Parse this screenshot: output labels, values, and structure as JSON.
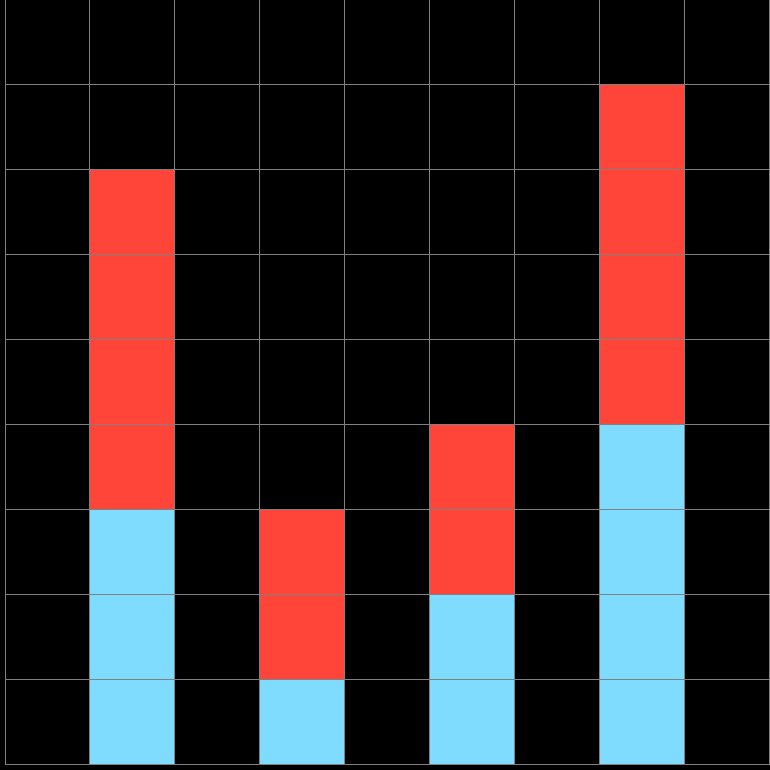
{
  "board": {
    "rows": 9,
    "cols": 9,
    "colors": {
      "empty": "#000000",
      "red": "#ff443a",
      "blue": "#80dcff",
      "grid_line": "#808080"
    },
    "grid": [
      [
        ".",
        ".",
        ".",
        ".",
        ".",
        ".",
        ".",
        ".",
        "."
      ],
      [
        ".",
        ".",
        ".",
        ".",
        ".",
        ".",
        ".",
        "R",
        "."
      ],
      [
        ".",
        "R",
        ".",
        ".",
        ".",
        ".",
        ".",
        "R",
        "."
      ],
      [
        ".",
        "R",
        ".",
        ".",
        ".",
        ".",
        ".",
        "R",
        "."
      ],
      [
        ".",
        "R",
        ".",
        ".",
        ".",
        ".",
        ".",
        "R",
        "."
      ],
      [
        ".",
        "R",
        ".",
        ".",
        ".",
        "R",
        ".",
        "B",
        "."
      ],
      [
        ".",
        "B",
        ".",
        "R",
        ".",
        "R",
        ".",
        "B",
        "."
      ],
      [
        ".",
        "B",
        ".",
        "R",
        ".",
        "B",
        ".",
        "B",
        "."
      ],
      [
        ".",
        "B",
        ".",
        "B",
        ".",
        "B",
        ".",
        "B",
        "."
      ]
    ]
  }
}
